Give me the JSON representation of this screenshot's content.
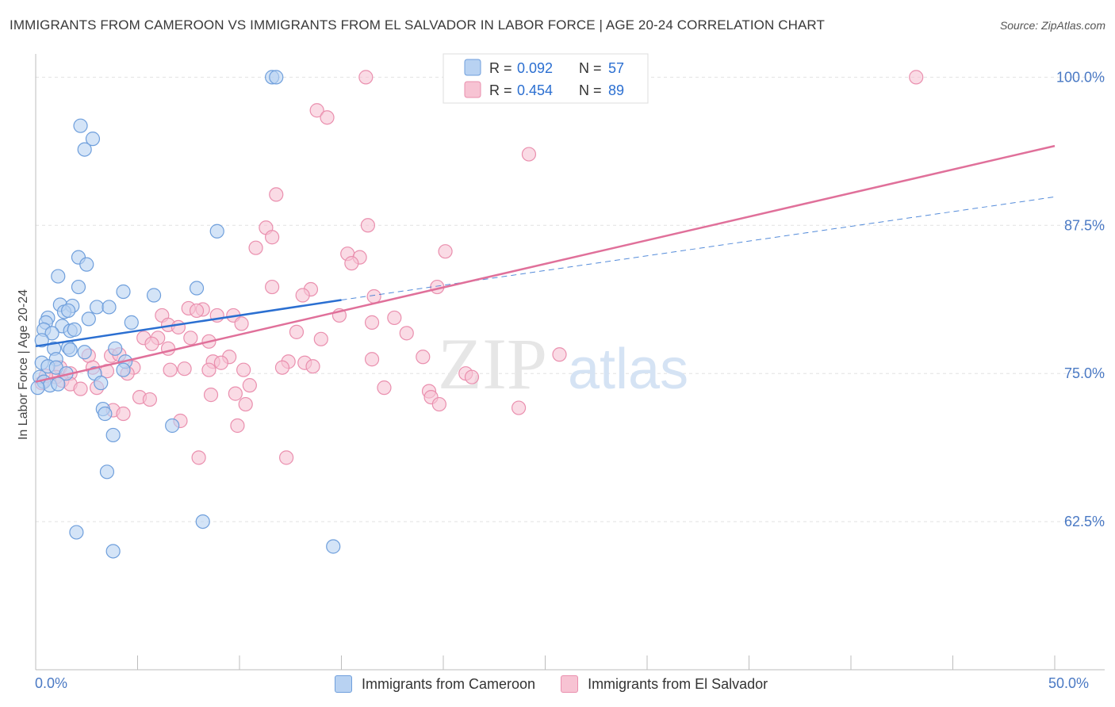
{
  "title": "IMMIGRANTS FROM CAMEROON VS IMMIGRANTS FROM EL SALVADOR IN LABOR FORCE | AGE 20-24 CORRELATION CHART",
  "source": "Source: ZipAtlas.com",
  "watermark": {
    "zip": "ZIP",
    "atlas": "atlas"
  },
  "colors": {
    "blue_fill": "#b8d2f2",
    "blue_stroke": "#6f9fdc",
    "blue_line": "#2b6fd1",
    "pink_fill": "#f7c3d3",
    "pink_stroke": "#ea8fae",
    "pink_line": "#e0709a",
    "axis_text": "#4a79c4",
    "grid": "#e2e2e2"
  },
  "legend": [
    {
      "r_label": "R =",
      "r_value": "0.092",
      "n_label": "N =",
      "n_value": "57"
    },
    {
      "r_label": "R =",
      "r_value": "0.454",
      "n_label": "N =",
      "n_value": "89"
    }
  ],
  "chart_data": {
    "type": "scatter",
    "title": "IMMIGRANTS FROM CAMEROON VS IMMIGRANTS FROM EL SALVADOR IN LABOR FORCE | AGE 20-24 CORRELATION CHART",
    "xlabel": "",
    "ylabel": "In Labor Force | Age 20-24",
    "xlim": [
      0,
      50
    ],
    "ylim": [
      50,
      102.5
    ],
    "x_tick_labels": [
      "0.0%",
      "50.0%"
    ],
    "y_ticks": [
      62.5,
      75.0,
      87.5,
      100.0
    ],
    "y_tick_labels": [
      "62.5%",
      "75.0%",
      "87.5%",
      "100.0%"
    ],
    "grid": true,
    "series": [
      {
        "name": "Immigrants from Cameroon",
        "r": 0.092,
        "n": 57,
        "trend": {
          "x": [
            0,
            15
          ],
          "y": [
            77.3,
            81.2
          ]
        },
        "trend_dashed": {
          "x": [
            15,
            50
          ],
          "y": [
            81.2,
            89.9
          ]
        },
        "points": [
          [
            11.6,
            100.0
          ],
          [
            11.8,
            100.0
          ],
          [
            2.2,
            95.9
          ],
          [
            2.8,
            94.8
          ],
          [
            2.4,
            93.9
          ],
          [
            8.9,
            87.0
          ],
          [
            2.1,
            84.8
          ],
          [
            2.5,
            84.2
          ],
          [
            1.1,
            83.2
          ],
          [
            2.1,
            82.3
          ],
          [
            4.3,
            81.9
          ],
          [
            5.8,
            81.6
          ],
          [
            7.9,
            82.2
          ],
          [
            1.2,
            80.8
          ],
          [
            1.8,
            80.7
          ],
          [
            3.0,
            80.6
          ],
          [
            3.6,
            80.6
          ],
          [
            1.4,
            80.2
          ],
          [
            1.6,
            80.3
          ],
          [
            0.6,
            79.7
          ],
          [
            2.6,
            79.6
          ],
          [
            4.7,
            79.3
          ],
          [
            0.5,
            79.3
          ],
          [
            1.3,
            79.0
          ],
          [
            1.7,
            78.6
          ],
          [
            0.4,
            78.7
          ],
          [
            1.9,
            78.7
          ],
          [
            0.8,
            78.4
          ],
          [
            0.3,
            77.8
          ],
          [
            0.9,
            77.1
          ],
          [
            1.6,
            77.2
          ],
          [
            1.7,
            77.0
          ],
          [
            3.9,
            77.1
          ],
          [
            2.4,
            76.8
          ],
          [
            1.0,
            76.2
          ],
          [
            0.3,
            75.9
          ],
          [
            4.4,
            76.0
          ],
          [
            0.6,
            75.6
          ],
          [
            1.0,
            75.5
          ],
          [
            4.3,
            75.3
          ],
          [
            1.5,
            75.0
          ],
          [
            2.9,
            75.0
          ],
          [
            0.2,
            74.7
          ],
          [
            0.4,
            74.3
          ],
          [
            0.7,
            74.0
          ],
          [
            1.1,
            74.1
          ],
          [
            3.2,
            74.2
          ],
          [
            0.1,
            73.8
          ],
          [
            3.3,
            72.0
          ],
          [
            3.4,
            71.6
          ],
          [
            6.7,
            70.6
          ],
          [
            3.8,
            69.8
          ],
          [
            3.5,
            66.7
          ],
          [
            8.2,
            62.5
          ],
          [
            2.0,
            61.6
          ],
          [
            3.8,
            60.0
          ],
          [
            14.6,
            60.4
          ]
        ]
      },
      {
        "name": "Immigrants from El Salvador",
        "r": 0.454,
        "n": 89,
        "trend": {
          "x": [
            0,
            50
          ],
          "y": [
            74.3,
            94.2
          ]
        },
        "points": [
          [
            16.2,
            100.0
          ],
          [
            43.2,
            100.0
          ],
          [
            13.8,
            97.2
          ],
          [
            14.3,
            96.6
          ],
          [
            24.2,
            93.5
          ],
          [
            11.8,
            90.1
          ],
          [
            11.3,
            87.3
          ],
          [
            16.3,
            87.5
          ],
          [
            11.6,
            86.5
          ],
          [
            10.8,
            85.6
          ],
          [
            15.3,
            85.1
          ],
          [
            15.9,
            84.8
          ],
          [
            20.1,
            85.3
          ],
          [
            15.5,
            84.3
          ],
          [
            11.6,
            82.3
          ],
          [
            13.5,
            82.1
          ],
          [
            19.7,
            82.3
          ],
          [
            13.1,
            81.6
          ],
          [
            16.6,
            81.5
          ],
          [
            7.5,
            80.5
          ],
          [
            8.2,
            80.4
          ],
          [
            7.9,
            80.3
          ],
          [
            6.2,
            79.9
          ],
          [
            8.9,
            79.9
          ],
          [
            9.7,
            79.9
          ],
          [
            10.1,
            79.2
          ],
          [
            14.9,
            79.9
          ],
          [
            17.6,
            79.7
          ],
          [
            6.5,
            79.1
          ],
          [
            7.0,
            78.9
          ],
          [
            16.5,
            79.3
          ],
          [
            5.3,
            78.0
          ],
          [
            6.0,
            78.0
          ],
          [
            7.6,
            78.0
          ],
          [
            5.7,
            77.5
          ],
          [
            8.5,
            77.7
          ],
          [
            12.8,
            78.5
          ],
          [
            14.0,
            77.9
          ],
          [
            18.2,
            78.4
          ],
          [
            6.5,
            77.1
          ],
          [
            3.7,
            76.5
          ],
          [
            4.1,
            76.6
          ],
          [
            2.6,
            76.5
          ],
          [
            8.7,
            76.0
          ],
          [
            9.5,
            76.4
          ],
          [
            12.4,
            76.0
          ],
          [
            13.2,
            75.9
          ],
          [
            16.5,
            76.2
          ],
          [
            19.0,
            76.4
          ],
          [
            25.7,
            76.6
          ],
          [
            1.2,
            75.5
          ],
          [
            2.8,
            75.5
          ],
          [
            3.5,
            75.2
          ],
          [
            4.8,
            75.5
          ],
          [
            6.6,
            75.3
          ],
          [
            7.3,
            75.4
          ],
          [
            8.5,
            75.3
          ],
          [
            9.1,
            75.9
          ],
          [
            10.2,
            75.3
          ],
          [
            13.6,
            75.6
          ],
          [
            4.5,
            75.0
          ],
          [
            1.7,
            75.0
          ],
          [
            1.0,
            74.7
          ],
          [
            1.3,
            74.4
          ],
          [
            0.3,
            74.2
          ],
          [
            1.7,
            74.1
          ],
          [
            2.2,
            73.7
          ],
          [
            3.0,
            73.8
          ],
          [
            10.5,
            74.0
          ],
          [
            17.1,
            73.8
          ],
          [
            19.3,
            73.5
          ],
          [
            19.4,
            73.0
          ],
          [
            21.1,
            75.0
          ],
          [
            21.4,
            74.7
          ],
          [
            5.1,
            73.0
          ],
          [
            5.6,
            72.8
          ],
          [
            8.6,
            73.2
          ],
          [
            9.8,
            73.3
          ],
          [
            10.3,
            72.4
          ],
          [
            3.8,
            71.9
          ],
          [
            4.3,
            71.6
          ],
          [
            19.8,
            72.4
          ],
          [
            23.7,
            72.1
          ],
          [
            7.1,
            71.0
          ],
          [
            9.9,
            70.6
          ],
          [
            8.0,
            67.9
          ],
          [
            12.3,
            67.9
          ],
          [
            12.1,
            75.5
          ],
          [
            0.5,
            74.8
          ]
        ]
      }
    ]
  },
  "bottom_legend": [
    {
      "label": "Immigrants from Cameroon"
    },
    {
      "label": "Immigrants from El Salvador"
    }
  ]
}
